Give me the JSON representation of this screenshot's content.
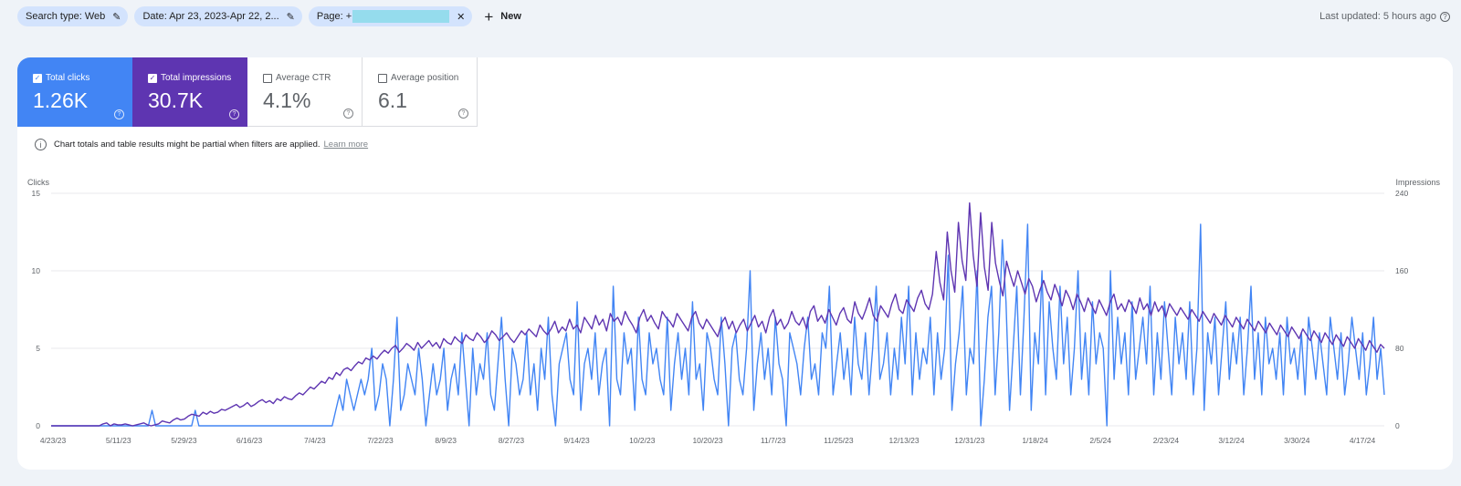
{
  "filters": {
    "search_type": "Search type: Web",
    "date": "Date: Apr 23, 2023-Apr 22, 2...",
    "page_prefix": "Page: +",
    "new_label": "New"
  },
  "last_updated": "Last updated: 5 hours ago",
  "metrics": {
    "clicks": {
      "label": "Total clicks",
      "value": "1.26K"
    },
    "impressions": {
      "label": "Total impressions",
      "value": "30.7K"
    },
    "ctr": {
      "label": "Average CTR",
      "value": "4.1%"
    },
    "position": {
      "label": "Average position",
      "value": "6.1"
    }
  },
  "notice": {
    "text": "Chart totals and table results might be partial when filters are applied.",
    "link": "Learn more"
  },
  "colors": {
    "clicks": "#4285f4",
    "impressions": "#5e35b1",
    "grid": "#e8eaed"
  },
  "chart_data": {
    "type": "line",
    "ylabel_left": "Clicks",
    "ylabel_right": "Impressions",
    "ylim_left": [
      0,
      15
    ],
    "ylim_right": [
      0,
      240
    ],
    "yticks_left": [
      "0",
      "5",
      "10",
      "15"
    ],
    "yticks_right": [
      "0",
      "80",
      "160",
      "240"
    ],
    "xticks": [
      "4/23/23",
      "5/11/23",
      "5/29/23",
      "6/16/23",
      "7/4/23",
      "7/22/23",
      "8/9/23",
      "8/27/23",
      "9/14/23",
      "10/2/23",
      "10/20/23",
      "11/7/23",
      "11/25/23",
      "12/13/23",
      "12/31/23",
      "1/18/24",
      "2/5/24",
      "2/23/24",
      "3/12/24",
      "3/30/24",
      "4/17/24"
    ],
    "grid": true,
    "series": [
      {
        "name": "Clicks",
        "axis": "left",
        "values": [
          0,
          0,
          0,
          0,
          0,
          0,
          0,
          0,
          0,
          0,
          0,
          0,
          0,
          0,
          0,
          0,
          0,
          0,
          0,
          0,
          0,
          0,
          0,
          0,
          0,
          0,
          0,
          0,
          1,
          0,
          0,
          0,
          0,
          0,
          0,
          0,
          0,
          0,
          0,
          0,
          1,
          0,
          0,
          0,
          0,
          0,
          0,
          0,
          0,
          0,
          0,
          0,
          0,
          0,
          0,
          0,
          0,
          0,
          0,
          0,
          0,
          0,
          0,
          0,
          0,
          0,
          0,
          0,
          0,
          0,
          0,
          0,
          0,
          0,
          0,
          0,
          0,
          0,
          0,
          1,
          2,
          1,
          3,
          2,
          1,
          2,
          3,
          2,
          3,
          5,
          1,
          2,
          4,
          3,
          0,
          3,
          7,
          1,
          2,
          4,
          3,
          2,
          5,
          3,
          0,
          2,
          4,
          2,
          3,
          5,
          1,
          3,
          4,
          2,
          6,
          3,
          0,
          5,
          2,
          4,
          3,
          6,
          2,
          1,
          4,
          7,
          3,
          0,
          5,
          4,
          2,
          3,
          6,
          2,
          4,
          1,
          5,
          3,
          7,
          2,
          0,
          4,
          5,
          6,
          3,
          2,
          8,
          1,
          4,
          5,
          3,
          6,
          2,
          4,
          5,
          0,
          9,
          3,
          2,
          6,
          4,
          5,
          1,
          7,
          3,
          2,
          6,
          4,
          5,
          3,
          2,
          7,
          1,
          4,
          6,
          3,
          5,
          2,
          8,
          3,
          4,
          1,
          6,
          5,
          3,
          2,
          7,
          4,
          0,
          5,
          6,
          3,
          2,
          5,
          10,
          1,
          4,
          6,
          3,
          5,
          2,
          7,
          4,
          3,
          0,
          6,
          5,
          4,
          2,
          5,
          7,
          3,
          4,
          2,
          6,
          5,
          9,
          2,
          4,
          6,
          3,
          5,
          2,
          7,
          4,
          3,
          6,
          2,
          5,
          9,
          3,
          4,
          6,
          2,
          5,
          3,
          7,
          4,
          9,
          2,
          6,
          3,
          5,
          4,
          7,
          2,
          6,
          3,
          5,
          11,
          1,
          4,
          6,
          9,
          2,
          5,
          4,
          10,
          0,
          3,
          7,
          9,
          2,
          6,
          12,
          8,
          1,
          5,
          9,
          2,
          7,
          13,
          1,
          6,
          4,
          10,
          2,
          8,
          5,
          3,
          9,
          4,
          7,
          2,
          5,
          10,
          3,
          6,
          2,
          8,
          4,
          6,
          5,
          0,
          10,
          3,
          7,
          4,
          6,
          2,
          8,
          3,
          5,
          7,
          4,
          9,
          2,
          6,
          3,
          8,
          5,
          2,
          7,
          4,
          6,
          3,
          8,
          2,
          5,
          13,
          1,
          6,
          4,
          7,
          2,
          5,
          8,
          3,
          6,
          4,
          7,
          2,
          5,
          9,
          3,
          6,
          2,
          7,
          4,
          5,
          3,
          6,
          2,
          7,
          4,
          5,
          3,
          6,
          2,
          7,
          5,
          3,
          6,
          4,
          2,
          7,
          5,
          3,
          6,
          2,
          4,
          7,
          5,
          3,
          6,
          2,
          4,
          7,
          3,
          5,
          2
        ]
      },
      {
        "name": "Impressions",
        "axis": "right",
        "values": [
          0,
          0,
          0,
          0,
          0,
          0,
          0,
          0,
          0,
          0,
          0,
          0,
          0,
          0,
          2,
          3,
          0,
          2,
          1,
          1,
          2,
          1,
          0,
          1,
          2,
          3,
          1,
          0,
          1,
          2,
          5,
          4,
          3,
          6,
          8,
          6,
          7,
          10,
          12,
          11,
          10,
          14,
          12,
          15,
          13,
          14,
          17,
          16,
          18,
          20,
          22,
          19,
          21,
          24,
          20,
          22,
          25,
          27,
          24,
          26,
          23,
          28,
          26,
          30,
          28,
          27,
          31,
          34,
          32,
          36,
          40,
          38,
          42,
          46,
          44,
          50,
          48,
          55,
          52,
          58,
          60,
          57,
          62,
          66,
          64,
          70,
          68,
          72,
          69,
          74,
          78,
          75,
          80,
          83,
          76,
          80,
          85,
          82,
          78,
          86,
          80,
          84,
          88,
          82,
          86,
          80,
          90,
          86,
          84,
          92,
          88,
          85,
          94,
          90,
          88,
          96,
          92,
          86,
          90,
          98,
          94,
          88,
          92,
          96,
          90,
          86,
          92,
          98,
          94,
          100,
          96,
          92,
          104,
          98,
          94,
          100,
          108,
          96,
          102,
          98,
          110,
          100,
          104,
          96,
          112,
          106,
          100,
          114,
          104,
          110,
          98,
          116,
          108,
          112,
          104,
          118,
          110,
          104,
          96,
          112,
          120,
          108,
          114,
          106,
          100,
          118,
          112,
          108,
          102,
          116,
          110,
          104,
          98,
          112,
          118,
          106,
          100,
          110,
          104,
          98,
          92,
          106,
          112,
          100,
          108,
          96,
          104,
          110,
          98,
          106,
          114,
          102,
          108,
          96,
          112,
          120,
          104,
          110,
          100,
          106,
          118,
          108,
          104,
          112,
          100,
          118,
          124,
          108,
          114,
          106,
          120,
          112,
          104,
          116,
          122,
          110,
          106,
          128,
          116,
          110,
          120,
          132,
          114,
          108,
          124,
          118,
          112,
          126,
          136,
          120,
          116,
          130,
          124,
          118,
          132,
          140,
          126,
          120,
          136,
          180,
          148,
          130,
          200,
          160,
          138,
          210,
          170,
          150,
          230,
          176,
          144,
          220,
          164,
          140,
          210,
          168,
          150,
          134,
          170,
          156,
          144,
          160,
          148,
          136,
          152,
          144,
          128,
          140,
          150,
          138,
          130,
          146,
          136,
          124,
          140,
          132,
          120,
          136,
          128,
          118,
          132,
          124,
          116,
          130,
          122,
          114,
          128,
          136,
          120,
          126,
          118,
          130,
          124,
          116,
          132,
          120,
          126,
          114,
          128,
          118,
          124,
          112,
          126,
          120,
          114,
          122,
          116,
          110,
          120,
          114,
          108,
          118,
          112,
          106,
          116,
          110,
          104,
          114,
          108,
          102,
          112,
          106,
          100,
          110,
          104,
          98,
          108,
          102,
          96,
          106,
          100,
          94,
          104,
          98,
          92,
          102,
          96,
          90,
          100,
          94,
          88,
          98,
          92,
          86,
          96,
          90,
          84,
          94,
          88,
          82,
          92,
          86,
          80,
          90,
          84,
          78,
          88,
          82,
          76,
          84,
          80
        ]
      }
    ]
  }
}
